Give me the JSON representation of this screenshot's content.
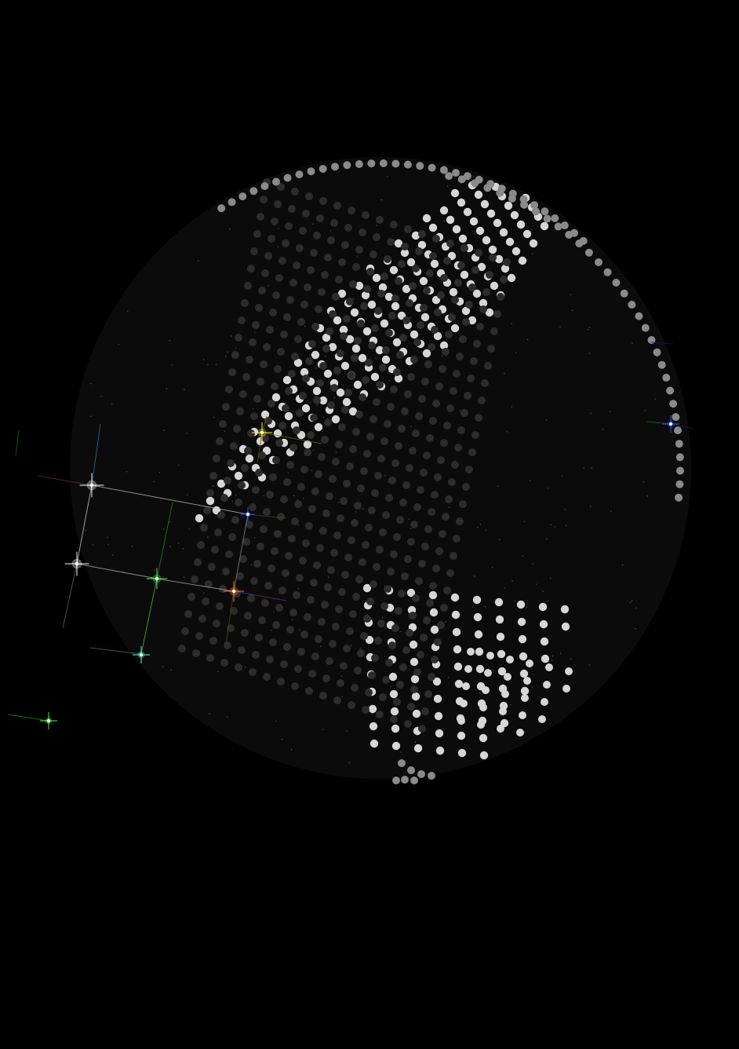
{
  "scene": {
    "title": "",
    "description_visible_text": ""
  },
  "colors": {
    "background": "#000000",
    "globe_fill": "#0b0b0b",
    "land_dot_front": "#d6d6d6",
    "land_dot_side": "#8a8a8a",
    "land_dot_back": "#2c2c2c",
    "star_white": "#ffffff",
    "star_green": "#44ff44",
    "star_yellow": "#ffee33",
    "star_orange": "#ff7a3c",
    "star_teal": "#55ffcc",
    "star_blue": "#3355ff",
    "link_line": "#cfcfcf"
  },
  "markers": [
    {
      "name": "marker-white-1",
      "color": "white"
    },
    {
      "name": "marker-white-2",
      "color": "white"
    },
    {
      "name": "marker-green-1",
      "color": "green"
    },
    {
      "name": "marker-orange-1",
      "color": "orange"
    },
    {
      "name": "marker-teal-1",
      "color": "teal"
    },
    {
      "name": "marker-green-2",
      "color": "green"
    },
    {
      "name": "marker-yellow-1",
      "color": "yellow"
    },
    {
      "name": "marker-blue-1",
      "color": "blue"
    },
    {
      "name": "marker-blue-2",
      "color": "blue"
    }
  ]
}
